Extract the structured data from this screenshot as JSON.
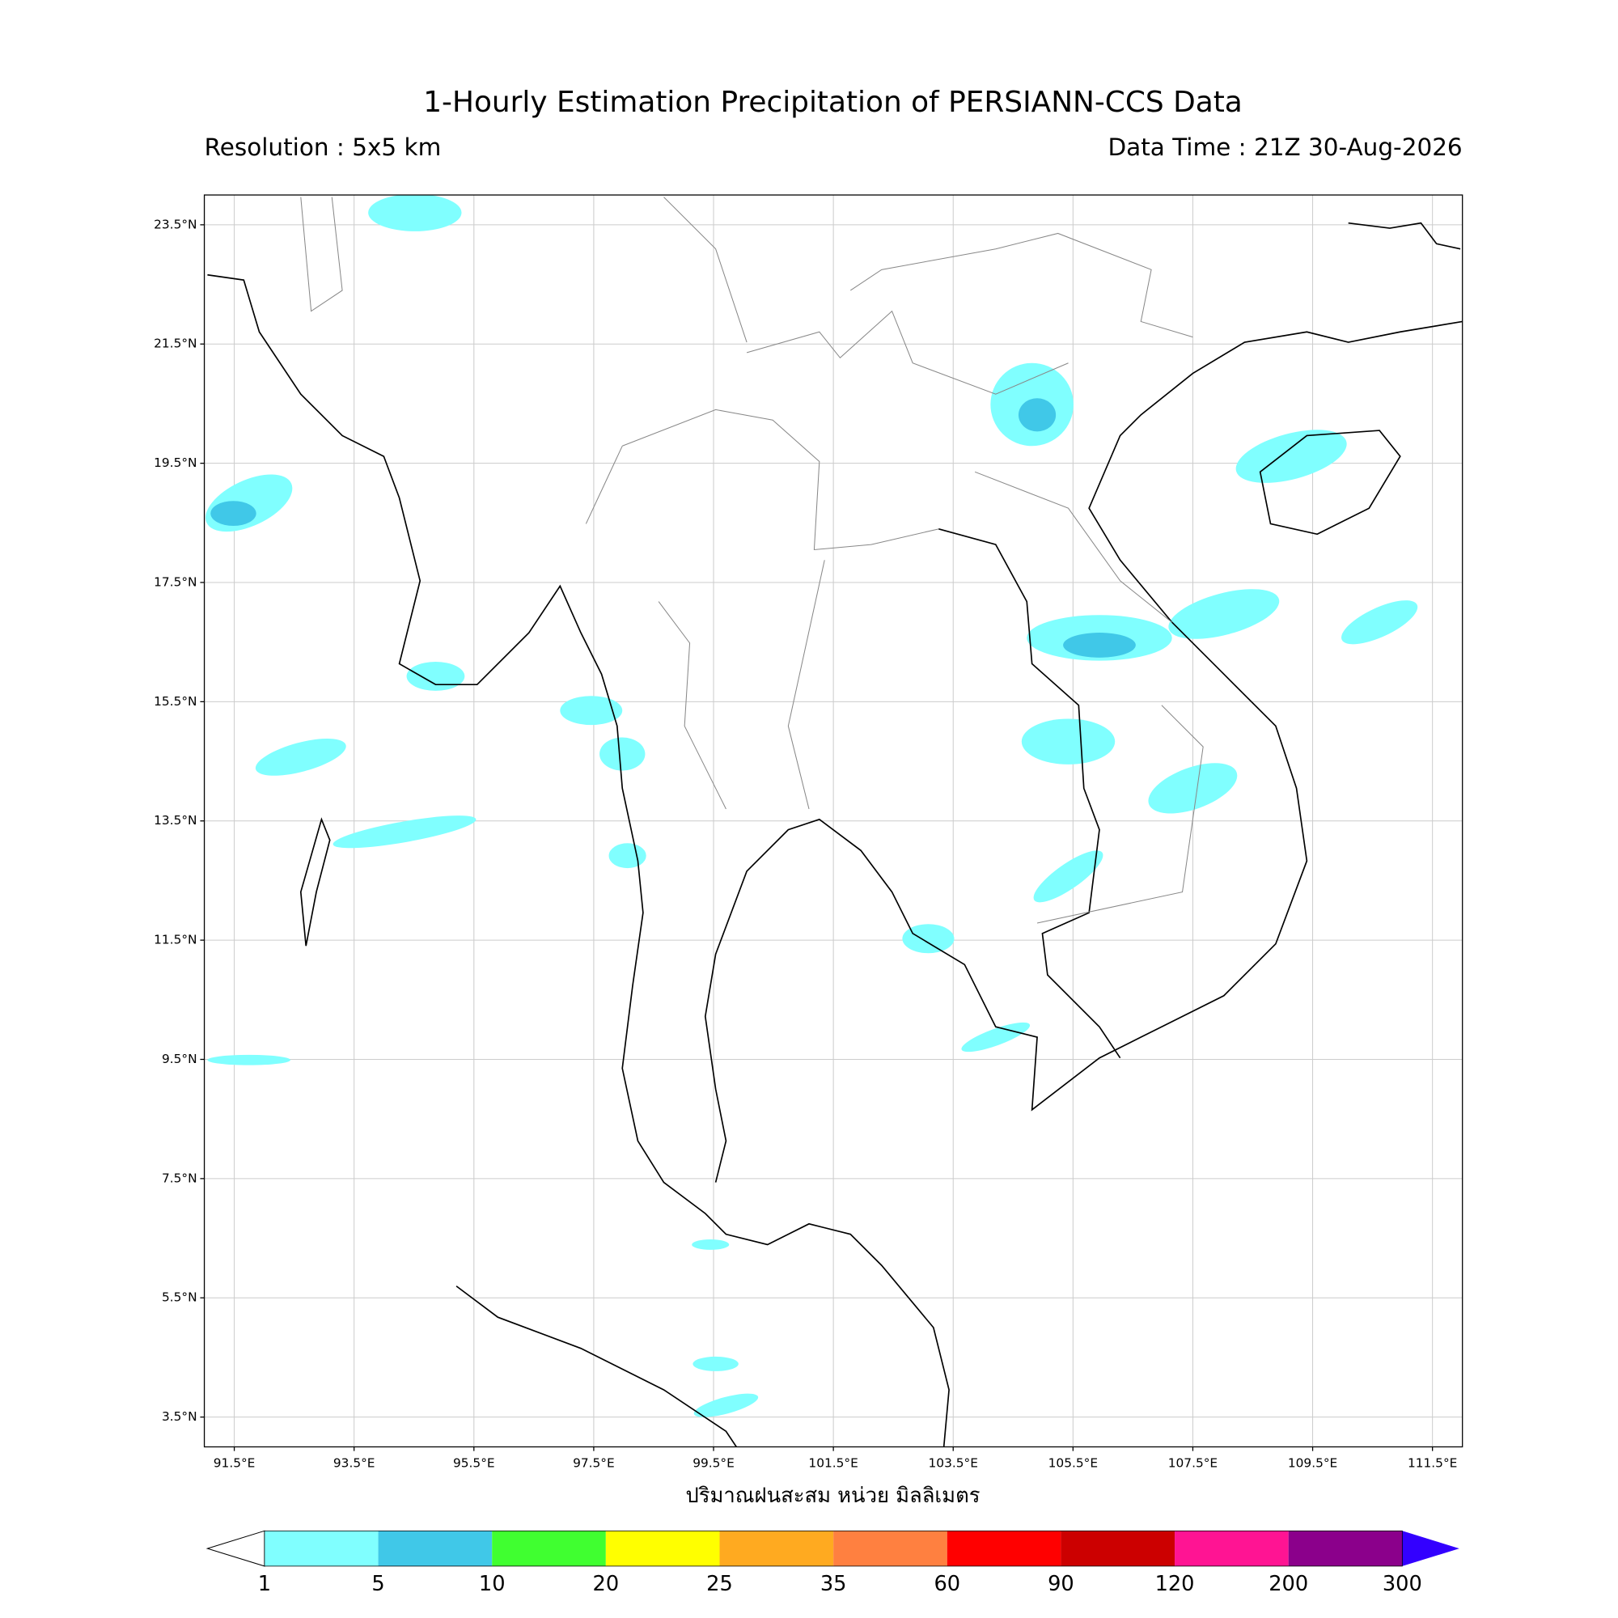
{
  "header": {
    "title": "1-Hourly Estimation Precipitation of PERSIANN-CCS Data",
    "resolution": "Resolution : 5x5 km",
    "data_time": "Data Time : 21Z 30-Aug-2026"
  },
  "map": {
    "lonlim": [
      91,
      112
    ],
    "latlim": [
      3,
      24
    ],
    "grid": true,
    "lon_ticks": [
      {
        "value": 91.5,
        "label": "91.5°E"
      },
      {
        "value": 93.5,
        "label": "93.5°E"
      },
      {
        "value": 95.5,
        "label": "95.5°E"
      },
      {
        "value": 97.5,
        "label": "97.5°E"
      },
      {
        "value": 99.5,
        "label": "99.5°E"
      },
      {
        "value": 101.5,
        "label": "101.5°E"
      },
      {
        "value": 103.5,
        "label": "103.5°E"
      },
      {
        "value": 105.5,
        "label": "105.5°E"
      },
      {
        "value": 107.5,
        "label": "107.5°E"
      },
      {
        "value": 109.5,
        "label": "109.5°E"
      },
      {
        "value": 111.5,
        "label": "111.5°E"
      }
    ],
    "lat_ticks": [
      {
        "value": 23.5,
        "label": "23.5°N"
      },
      {
        "value": 21.5,
        "label": "21.5°N"
      },
      {
        "value": 19.5,
        "label": "19.5°N"
      },
      {
        "value": 17.5,
        "label": "17.5°N"
      },
      {
        "value": 15.5,
        "label": "15.5°N"
      },
      {
        "value": 13.5,
        "label": "13.5°N"
      },
      {
        "value": 11.5,
        "label": "11.5°N"
      },
      {
        "value": 9.5,
        "label": "9.5°N"
      },
      {
        "value": 7.5,
        "label": "7.5°N"
      },
      {
        "value": 5.5,
        "label": "5.5°N"
      },
      {
        "value": 3.5,
        "label": "3.5°N"
      }
    ],
    "xlabel": "ปริมาณฝนสะสม หน่วย มิลลิเมตร"
  },
  "colorbar": {
    "levels": [
      1,
      5,
      10,
      20,
      25,
      35,
      60,
      90,
      120,
      200,
      300
    ],
    "colors": [
      "#80ffff",
      "#40c8e8",
      "#40ff30",
      "#ffff00",
      "#ffaa20",
      "#ff8040",
      "#ff0000",
      "#cc0000",
      "#ff1493",
      "#8b008b"
    ],
    "under_color": "#ffffff",
    "over_color": "#3300ff"
  }
}
